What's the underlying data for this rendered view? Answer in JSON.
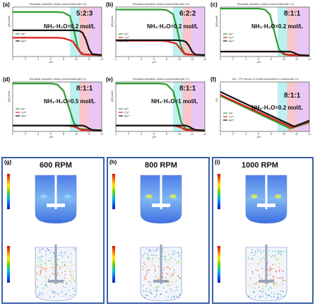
{
  "chart_data": [
    {
      "type": "line",
      "label": "(a)",
      "title": "Residual transition metal concentration(5:2:3)",
      "ratio": "5:2:3",
      "condition": "NH₃·H₂O=0.2 mol/L",
      "xlabel": "pH",
      "ylabel": "[M] mol/L",
      "xlim": [
        0,
        14
      ],
      "ylim": [
        0,
        1
      ],
      "bands": [
        {
          "from": 9,
          "to": 10.5,
          "color": "#bdf0f0"
        },
        {
          "from": 10.5,
          "to": 12,
          "color": "#f8c6cc"
        },
        {
          "from": 12,
          "to": 14,
          "color": "#e9c7f5"
        }
      ],
      "series": [
        {
          "name": "Ni²⁺",
          "color": "#2e9c2e",
          "x": [
            0,
            7,
            8,
            9,
            9.6,
            10.2,
            10.8,
            14
          ],
          "y": [
            0.9,
            0.9,
            0.89,
            0.82,
            0.55,
            0.2,
            0.05,
            0.02
          ]
        },
        {
          "name": "Co²⁺",
          "color": "#e01c1c",
          "x": [
            0,
            7,
            8,
            9,
            9.5,
            10,
            10.6,
            11.2,
            14
          ],
          "y": [
            0.38,
            0.38,
            0.37,
            0.33,
            0.3,
            0.2,
            0.09,
            0.04,
            0.03
          ]
        },
        {
          "name": "Mn²⁺",
          "color": "#111111",
          "x": [
            0,
            8,
            9.5,
            10.5,
            11,
            11.5,
            12,
            12.5,
            14
          ],
          "y": [
            0.53,
            0.53,
            0.53,
            0.52,
            0.48,
            0.35,
            0.15,
            0.05,
            0.03
          ]
        }
      ]
    },
    {
      "type": "line",
      "label": "(b)",
      "title": "Residual transition metal concentration(6:2:2)",
      "ratio": "6:2:2",
      "condition": "NH₃·H₂O=0.2 mol/L",
      "xlabel": "pH",
      "ylabel": "[M] mol/L",
      "xlim": [
        0,
        14
      ],
      "ylim": [
        0,
        1
      ],
      "bands": [
        {
          "from": 9,
          "to": 10.5,
          "color": "#bdf0f0"
        },
        {
          "from": 10.5,
          "to": 12,
          "color": "#f8c6cc"
        },
        {
          "from": 12,
          "to": 14,
          "color": "#e9c7f5"
        }
      ],
      "series": [
        {
          "name": "Ni²⁺",
          "color": "#2e9c2e",
          "x": [
            0,
            7,
            8,
            9,
            9.6,
            10.2,
            10.8,
            14
          ],
          "y": [
            0.95,
            0.95,
            0.94,
            0.86,
            0.58,
            0.22,
            0.05,
            0.02
          ]
        },
        {
          "name": "Co²⁺",
          "color": "#e01c1c",
          "x": [
            0,
            7,
            8,
            9,
            9.5,
            10,
            10.6,
            11.2,
            14
          ],
          "y": [
            0.32,
            0.32,
            0.31,
            0.28,
            0.26,
            0.18,
            0.08,
            0.04,
            0.03
          ]
        },
        {
          "name": "Mn²⁺",
          "color": "#111111",
          "x": [
            0,
            8,
            9.5,
            10.5,
            11,
            11.5,
            12,
            12.5,
            14
          ],
          "y": [
            0.33,
            0.33,
            0.33,
            0.32,
            0.3,
            0.22,
            0.1,
            0.04,
            0.03
          ]
        }
      ]
    },
    {
      "type": "line",
      "label": "(c)",
      "title": "Residual transition metal concentration(8:1:1)",
      "ratio": "8:1:1",
      "condition": "NH₃·H₂O=0.2 mol/L",
      "xlabel": "pH",
      "ylabel": "[M] mol/L",
      "xlim": [
        0,
        14
      ],
      "ylim": [
        0,
        1
      ],
      "bands": [
        {
          "from": 9,
          "to": 10.5,
          "color": "#bdf0f0"
        },
        {
          "from": 10.5,
          "to": 12,
          "color": "#f8c6cc"
        },
        {
          "from": 12,
          "to": 14,
          "color": "#e9c7f5"
        }
      ],
      "series": [
        {
          "name": "Ni²⁺",
          "color": "#2e9c2e",
          "x": [
            0,
            6,
            7,
            7.8,
            8.5,
            9.2,
            10,
            14
          ],
          "y": [
            0.97,
            0.97,
            0.95,
            0.85,
            0.5,
            0.15,
            0.04,
            0.02
          ]
        },
        {
          "name": "Co²⁺",
          "color": "#e01c1c",
          "x": [
            0,
            8,
            9,
            9.5,
            10,
            10.6,
            14
          ],
          "y": [
            0.1,
            0.1,
            0.1,
            0.09,
            0.06,
            0.03,
            0.02
          ]
        },
        {
          "name": "Mn²⁺",
          "color": "#111111",
          "x": [
            0,
            10,
            11,
            11.5,
            12,
            12.5,
            14
          ],
          "y": [
            0.1,
            0.1,
            0.1,
            0.08,
            0.05,
            0.03,
            0.02
          ]
        }
      ]
    },
    {
      "type": "line",
      "label": "(d)",
      "title": "Residual transition metal concentration(8:1:1)",
      "ratio": "8:1:1",
      "condition": "NH₃·H₂O=0.5 mol/L",
      "xlabel": "pH",
      "ylabel": "[M] mol/L",
      "xlim": [
        0,
        14
      ],
      "ylim": [
        0,
        1
      ],
      "bands": [
        {
          "from": 9,
          "to": 10.5,
          "color": "#bdf0f0"
        },
        {
          "from": 10.5,
          "to": 12,
          "color": "#f8c6cc"
        },
        {
          "from": 12,
          "to": 14,
          "color": "#e9c7f5"
        }
      ],
      "series": [
        {
          "name": "Ni²⁺",
          "color": "#2e9c2e",
          "x": [
            0,
            6,
            7,
            8,
            8.8,
            9.6,
            10.4,
            14
          ],
          "y": [
            0.97,
            0.97,
            0.95,
            0.82,
            0.5,
            0.18,
            0.05,
            0.02
          ]
        },
        {
          "name": "Co²⁺",
          "color": "#e01c1c",
          "x": [
            0,
            8,
            9,
            9.6,
            10.2,
            10.8,
            14
          ],
          "y": [
            0.12,
            0.12,
            0.11,
            0.1,
            0.07,
            0.03,
            0.02
          ]
        },
        {
          "name": "Mn²⁺",
          "color": "#111111",
          "x": [
            0,
            10,
            11,
            11.5,
            12,
            12.5,
            14
          ],
          "y": [
            0.12,
            0.12,
            0.12,
            0.1,
            0.06,
            0.03,
            0.02
          ]
        }
      ]
    },
    {
      "type": "line",
      "label": "(e)",
      "title": "Residual transition metal concentration(8:1:1)",
      "ratio": "8:1:1",
      "condition": "NH₃·H₂O=1 mol/L",
      "xlabel": "pH",
      "ylabel": "[M] mol/L",
      "xlim": [
        0,
        14
      ],
      "ylim": [
        0,
        1
      ],
      "bands": [
        {
          "from": 9,
          "to": 10.5,
          "color": "#bdf0f0"
        },
        {
          "from": 10.5,
          "to": 12,
          "color": "#f8c6cc"
        },
        {
          "from": 12,
          "to": 14,
          "color": "#e9c7f5"
        }
      ],
      "series": [
        {
          "name": "Ni²⁺",
          "color": "#2e9c2e",
          "x": [
            0,
            7,
            8,
            9,
            9.7,
            10.3,
            11,
            14
          ],
          "y": [
            0.97,
            0.97,
            0.95,
            0.82,
            0.5,
            0.18,
            0.05,
            0.02
          ]
        },
        {
          "name": "Co²⁺",
          "color": "#e01c1c",
          "x": [
            0,
            8,
            9,
            9.8,
            10.4,
            11,
            14
          ],
          "y": [
            0.12,
            0.12,
            0.12,
            0.1,
            0.07,
            0.03,
            0.02
          ]
        },
        {
          "name": "Mn²⁺",
          "color": "#111111",
          "x": [
            0,
            10,
            11,
            11.5,
            12,
            12.5,
            14
          ],
          "y": [
            0.12,
            0.12,
            0.12,
            0.1,
            0.06,
            0.03,
            0.02
          ]
        }
      ]
    },
    {
      "type": "line",
      "label": "(f)",
      "title": "ΔG - PH curves of metal hydroxides in solution(8:1:1)",
      "ratio": "8:1:1",
      "condition": "NH₃·H₂O=0.2 mol/L",
      "xlabel": "pH",
      "ylabel": "ΔG",
      "xlim": [
        0,
        14
      ],
      "ylim": [
        0,
        1
      ],
      "bands": [
        {
          "from": 9,
          "to": 10.5,
          "color": "#bdf0f0"
        },
        {
          "from": 10.5,
          "to": 12,
          "color": "#f8c6cc"
        },
        {
          "from": 12,
          "to": 14,
          "color": "#e9c7f5"
        }
      ],
      "series": [
        {
          "name": "Ni²⁺",
          "color": "#2e9c2e",
          "x": [
            0,
            11,
            14
          ],
          "y": [
            0.72,
            0.06,
            0.18
          ]
        },
        {
          "name": "Co²⁺",
          "color": "#e01c1c",
          "x": [
            0,
            11.3,
            14
          ],
          "y": [
            0.74,
            0.08,
            0.2
          ]
        },
        {
          "name": "Mn²⁺",
          "color": "#111111",
          "x": [
            0,
            11.6,
            14
          ],
          "y": [
            0.8,
            0.1,
            0.22
          ]
        }
      ]
    }
  ],
  "sims": [
    {
      "label": "(g)",
      "rpm": "600 RPM"
    },
    {
      "label": "(h)",
      "rpm": "800 RPM"
    },
    {
      "label": "(i)",
      "rpm": "1000 RPM"
    }
  ]
}
